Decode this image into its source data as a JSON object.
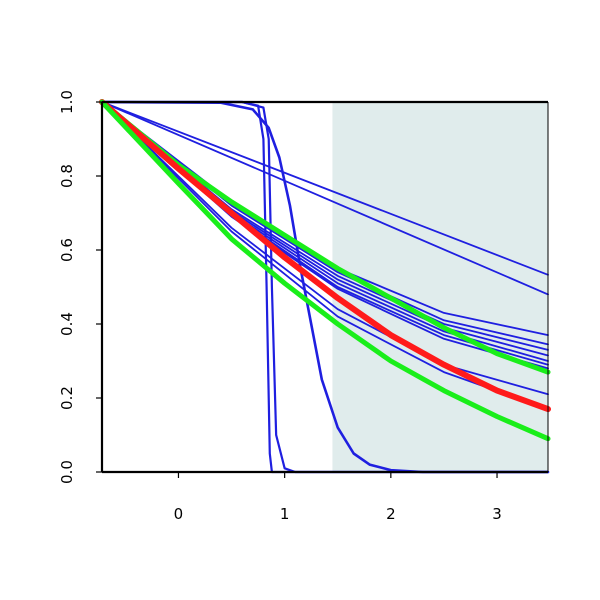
{
  "chart_data": {
    "type": "line",
    "title": "",
    "xlabel": "",
    "ylabel": "",
    "xlim": [
      -0.72,
      3.48
    ],
    "ylim": [
      0.0,
      1.0
    ],
    "x_ticks": [
      0,
      1,
      2,
      3
    ],
    "y_ticks": [
      0.0,
      0.2,
      0.4,
      0.6,
      0.8,
      1.0
    ],
    "x_tick_labels": [
      "0",
      "1",
      "2",
      "3"
    ],
    "y_tick_labels": [
      "0.0",
      "0.2",
      "0.4",
      "0.6",
      "0.8",
      "1.0"
    ],
    "shaded_region": {
      "x_start": 1.45,
      "x_end": 3.48,
      "color": "#e0ecec"
    },
    "colors": {
      "blue": "#1f1fe0",
      "red": "#ff1a1a",
      "green": "#1aee1a",
      "axis": "#000000"
    },
    "grid": false,
    "legend": "none",
    "series": [
      {
        "color": "blue",
        "width": 2.2,
        "points": [
          [
            -0.72,
            1.0
          ],
          [
            0.6,
            1.0
          ],
          [
            0.75,
            0.99
          ],
          [
            0.8,
            0.9
          ],
          [
            0.83,
            0.5
          ],
          [
            0.86,
            0.05
          ],
          [
            0.88,
            0.0
          ],
          [
            3.48,
            0.0
          ]
        ]
      },
      {
        "color": "blue",
        "width": 2.2,
        "points": [
          [
            -0.72,
            1.0
          ],
          [
            0.6,
            1.0
          ],
          [
            0.8,
            0.985
          ],
          [
            0.85,
            0.9
          ],
          [
            0.88,
            0.5
          ],
          [
            0.92,
            0.1
          ],
          [
            1.0,
            0.01
          ],
          [
            1.1,
            0.0
          ],
          [
            3.48,
            0.0
          ]
        ]
      },
      {
        "color": "blue",
        "width": 2.6,
        "points": [
          [
            -0.72,
            1.0
          ],
          [
            0.4,
            0.998
          ],
          [
            0.7,
            0.98
          ],
          [
            0.85,
            0.93
          ],
          [
            0.95,
            0.85
          ],
          [
            1.05,
            0.72
          ],
          [
            1.15,
            0.55
          ],
          [
            1.25,
            0.4
          ],
          [
            1.35,
            0.25
          ],
          [
            1.5,
            0.12
          ],
          [
            1.65,
            0.05
          ],
          [
            1.8,
            0.02
          ],
          [
            2.0,
            0.005
          ],
          [
            2.3,
            0.0
          ],
          [
            3.48,
            0.0
          ]
        ]
      },
      {
        "color": "blue",
        "width": 1.8,
        "points": [
          [
            -0.72,
            1.0
          ],
          [
            3.48,
            0.533
          ]
        ]
      },
      {
        "color": "blue",
        "width": 1.8,
        "points": [
          [
            -0.72,
            1.0
          ],
          [
            3.48,
            0.48
          ]
        ]
      },
      {
        "color": "blue",
        "width": 1.8,
        "points": [
          [
            -0.72,
            1.0
          ],
          [
            0.5,
            0.73
          ],
          [
            1.5,
            0.55
          ],
          [
            2.5,
            0.43
          ],
          [
            3.48,
            0.37
          ]
        ]
      },
      {
        "color": "blue",
        "width": 1.8,
        "points": [
          [
            -0.72,
            1.0
          ],
          [
            0.5,
            0.72
          ],
          [
            1.5,
            0.54
          ],
          [
            2.5,
            0.41
          ],
          [
            3.48,
            0.345
          ]
        ]
      },
      {
        "color": "blue",
        "width": 1.8,
        "points": [
          [
            -0.72,
            1.0
          ],
          [
            0.5,
            0.71
          ],
          [
            1.5,
            0.53
          ],
          [
            2.5,
            0.4
          ],
          [
            3.48,
            0.33
          ]
        ]
      },
      {
        "color": "blue",
        "width": 1.8,
        "points": [
          [
            -0.72,
            1.0
          ],
          [
            0.5,
            0.705
          ],
          [
            1.5,
            0.52
          ],
          [
            2.5,
            0.39
          ],
          [
            3.48,
            0.315
          ]
        ]
      },
      {
        "color": "blue",
        "width": 1.8,
        "points": [
          [
            -0.72,
            1.0
          ],
          [
            0.5,
            0.7
          ],
          [
            1.5,
            0.51
          ],
          [
            2.5,
            0.38
          ],
          [
            3.48,
            0.3
          ]
        ]
      },
      {
        "color": "blue",
        "width": 1.8,
        "points": [
          [
            -0.72,
            1.0
          ],
          [
            0.5,
            0.695
          ],
          [
            1.5,
            0.5
          ],
          [
            2.5,
            0.37
          ],
          [
            3.48,
            0.29
          ]
        ]
      },
      {
        "color": "blue",
        "width": 1.8,
        "points": [
          [
            -0.72,
            1.0
          ],
          [
            0.5,
            0.69
          ],
          [
            1.5,
            0.495
          ],
          [
            2.5,
            0.36
          ],
          [
            3.48,
            0.28
          ]
        ]
      },
      {
        "color": "blue",
        "width": 1.8,
        "points": [
          [
            -0.72,
            1.0
          ],
          [
            0.5,
            0.66
          ],
          [
            1.5,
            0.44
          ],
          [
            2.5,
            0.29
          ],
          [
            3.48,
            0.21
          ]
        ]
      },
      {
        "color": "blue",
        "width": 1.8,
        "points": [
          [
            -0.72,
            1.0
          ],
          [
            0.5,
            0.65
          ],
          [
            1.5,
            0.42
          ],
          [
            2.5,
            0.27
          ],
          [
            3.48,
            0.17
          ]
        ]
      },
      {
        "color": "green",
        "width": 5.0,
        "points": [
          [
            -0.72,
            1.0
          ],
          [
            0.0,
            0.83
          ],
          [
            0.5,
            0.73
          ],
          [
            1.0,
            0.64
          ],
          [
            1.5,
            0.55
          ],
          [
            2.0,
            0.47
          ],
          [
            2.5,
            0.39
          ],
          [
            3.0,
            0.32
          ],
          [
            3.48,
            0.27
          ]
        ]
      },
      {
        "color": "red",
        "width": 6.0,
        "points": [
          [
            -0.72,
            1.0
          ],
          [
            0.0,
            0.82
          ],
          [
            0.5,
            0.7
          ],
          [
            1.0,
            0.58
          ],
          [
            1.5,
            0.47
          ],
          [
            2.0,
            0.37
          ],
          [
            2.5,
            0.29
          ],
          [
            3.0,
            0.22
          ],
          [
            3.48,
            0.17
          ]
        ]
      },
      {
        "color": "green",
        "width": 5.0,
        "points": [
          [
            -0.72,
            1.0
          ],
          [
            0.0,
            0.78
          ],
          [
            0.5,
            0.63
          ],
          [
            1.0,
            0.51
          ],
          [
            1.5,
            0.4
          ],
          [
            2.0,
            0.3
          ],
          [
            2.5,
            0.22
          ],
          [
            3.0,
            0.15
          ],
          [
            3.48,
            0.09
          ]
        ]
      }
    ]
  }
}
